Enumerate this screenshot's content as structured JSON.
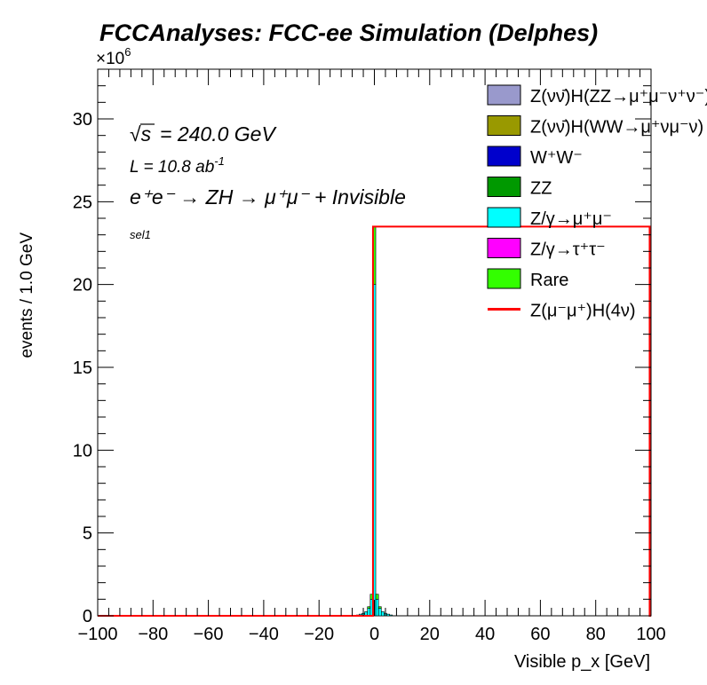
{
  "chart_data": {
    "type": "bar",
    "title": "FCCAnalyses: FCC-ee Simulation (Delphes)",
    "xlabel": "Visible p_x [GeV]",
    "ylabel": "events / 1.0 GeV",
    "y_multiplier": "×10^6",
    "xlim": [
      -100,
      100
    ],
    "ylim": [
      0,
      33
    ],
    "y_unit_scale": 1000000,
    "x_ticks": [
      -100,
      -80,
      -60,
      -40,
      -20,
      0,
      20,
      40,
      60,
      80,
      100
    ],
    "y_ticks": [
      0,
      5,
      10,
      15,
      20,
      25,
      30
    ],
    "annotations": {
      "sqrt_s": "= 240.0 GeV",
      "lumi": "L = 10.8 ab",
      "lumi_exp": "-1",
      "process": "e⁺e⁻ → ZH → μ⁺μ⁻ + Invisible",
      "selection": "sel1"
    },
    "legend_position": "top-right",
    "stacked_series": [
      {
        "name": "Z(νν̄)H(ZZ→μ⁺μ⁻ν⁺ν⁻)",
        "color": "#9999cc",
        "points": []
      },
      {
        "name": "Z(νν̄)H(WW→μ⁺νμ⁻ν)",
        "color": "#999900",
        "points": []
      },
      {
        "name": "W⁺W⁻",
        "color": "#0000cc",
        "points": []
      },
      {
        "name": "ZZ",
        "color": "#009900",
        "points": []
      },
      {
        "name": "Z/γ→μ⁺μ⁻",
        "color": "#00ffff",
        "points": [
          [
            -6,
            0.05
          ],
          [
            -5,
            0.1
          ],
          [
            -4,
            0.15
          ],
          [
            -3,
            0.25
          ],
          [
            -2,
            0.45
          ],
          [
            -1,
            1.0
          ],
          [
            0,
            20.0
          ],
          [
            1,
            1.0
          ],
          [
            2,
            0.45
          ],
          [
            3,
            0.25
          ],
          [
            4,
            0.15
          ],
          [
            5,
            0.1
          ],
          [
            6,
            0.05
          ]
        ]
      },
      {
        "name": "Z/γ→τ⁺τ⁻",
        "color": "#ff00ff",
        "points": []
      },
      {
        "name": "Rare",
        "color": "#33ff00",
        "points": [
          [
            -2,
            0.1
          ],
          [
            -1,
            0.3
          ],
          [
            0,
            3.5
          ],
          [
            1,
            0.3
          ],
          [
            2,
            0.1
          ]
        ]
      }
    ],
    "line_series": [
      {
        "name": "Z(μ⁻μ⁺)H(4ν)",
        "color": "#ff0000",
        "points": [
          [
            -100,
            0.0
          ],
          [
            0,
            23.5
          ],
          [
            100,
            0.0
          ]
        ]
      }
    ]
  }
}
